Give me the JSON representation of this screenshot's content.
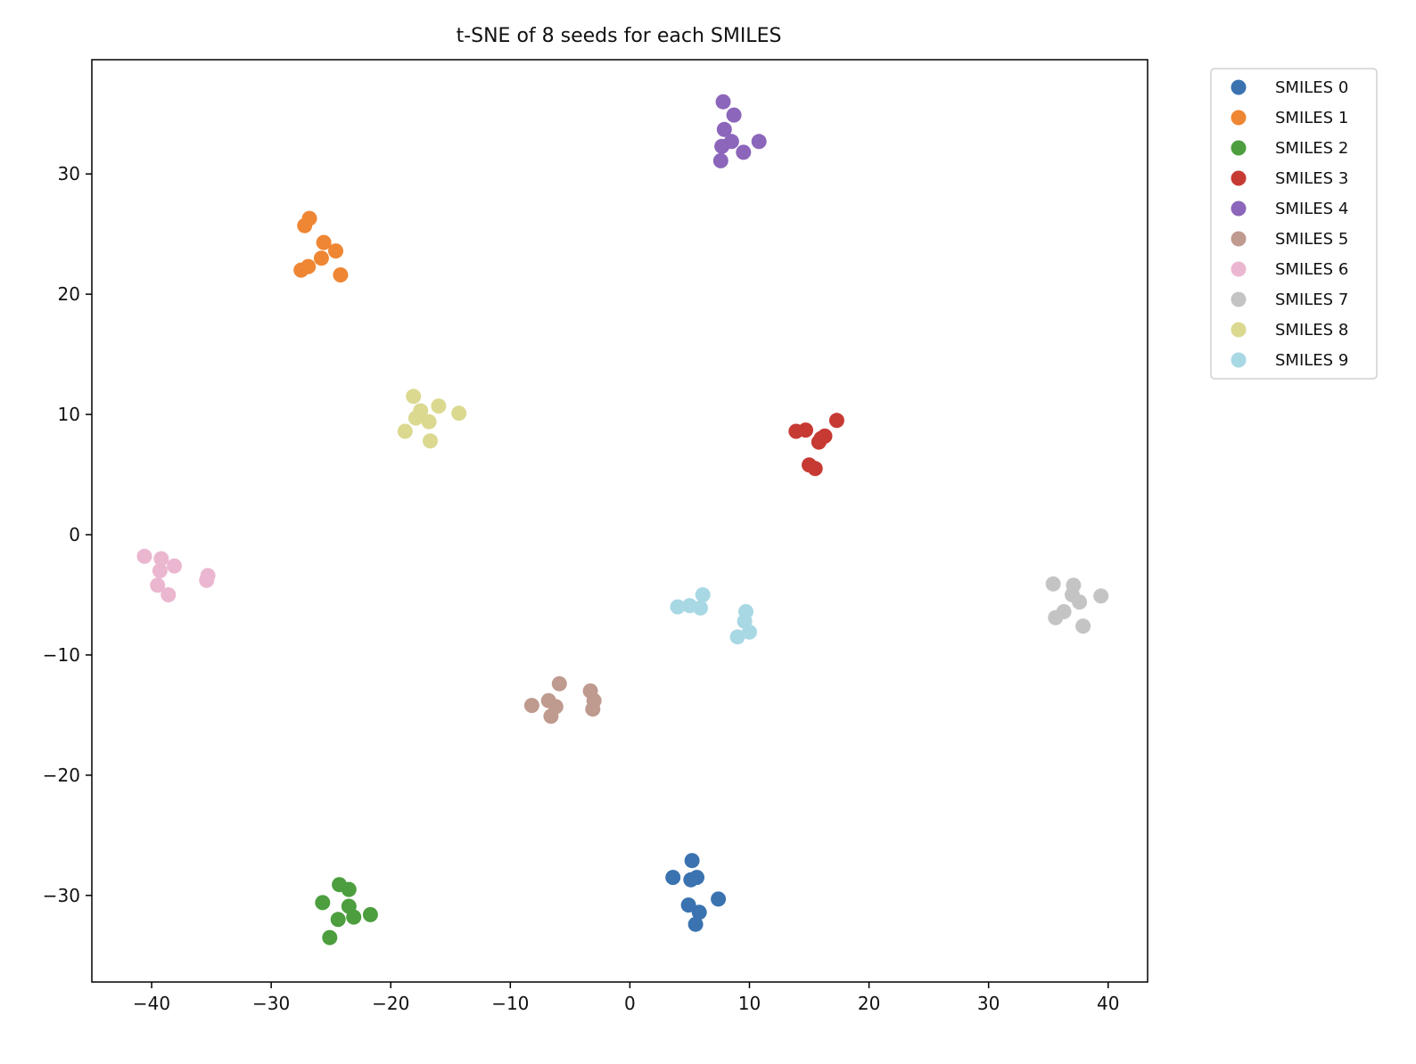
{
  "chart_data": {
    "type": "scatter",
    "title": "t-SNE of 8 seeds for each SMILES",
    "xlabel": "",
    "ylabel": "",
    "xlim": [
      -45,
      43.3
    ],
    "ylim": [
      -37.2,
      39.5
    ],
    "xticks": [
      -40,
      -30,
      -20,
      -10,
      0,
      10,
      20,
      30,
      40
    ],
    "yticks": [
      -30,
      -20,
      -10,
      0,
      10,
      20,
      30
    ],
    "grid": false,
    "legend_position": "outside-top-right",
    "series": [
      {
        "name": "SMILES 0",
        "color": "#3a73b0",
        "points": [
          [
            5.2,
            -27.1
          ],
          [
            3.6,
            -28.5
          ],
          [
            5.1,
            -28.7
          ],
          [
            5.6,
            -28.5
          ],
          [
            7.4,
            -30.3
          ],
          [
            4.9,
            -30.8
          ],
          [
            5.8,
            -31.4
          ],
          [
            5.5,
            -32.4
          ]
        ]
      },
      {
        "name": "SMILES 1",
        "color": "#ef8633",
        "points": [
          [
            -26.8,
            26.3
          ],
          [
            -27.2,
            25.7
          ],
          [
            -25.6,
            24.3
          ],
          [
            -24.6,
            23.6
          ],
          [
            -25.8,
            23.0
          ],
          [
            -26.9,
            22.3
          ],
          [
            -27.5,
            22.0
          ],
          [
            -24.2,
            21.6
          ]
        ]
      },
      {
        "name": "SMILES 2",
        "color": "#4c9e3e",
        "points": [
          [
            -24.3,
            -29.1
          ],
          [
            -23.5,
            -29.5
          ],
          [
            -25.7,
            -30.6
          ],
          [
            -23.5,
            -30.9
          ],
          [
            -21.7,
            -31.6
          ],
          [
            -23.1,
            -31.8
          ],
          [
            -24.4,
            -32.0
          ],
          [
            -25.1,
            -33.5
          ]
        ]
      },
      {
        "name": "SMILES 3",
        "color": "#c73a33",
        "points": [
          [
            17.3,
            9.5
          ],
          [
            13.9,
            8.6
          ],
          [
            14.7,
            8.7
          ],
          [
            16.3,
            8.2
          ],
          [
            15.8,
            7.7
          ],
          [
            15.0,
            5.8
          ],
          [
            15.5,
            5.5
          ],
          [
            16.0,
            8.0
          ]
        ]
      },
      {
        "name": "SMILES 4",
        "color": "#8c66ba",
        "points": [
          [
            7.8,
            36.0
          ],
          [
            8.7,
            34.9
          ],
          [
            7.9,
            33.7
          ],
          [
            8.5,
            32.7
          ],
          [
            7.7,
            32.3
          ],
          [
            10.8,
            32.7
          ],
          [
            9.5,
            31.8
          ],
          [
            7.6,
            31.1
          ]
        ]
      },
      {
        "name": "SMILES 5",
        "color": "#bf9a8f",
        "points": [
          [
            -5.9,
            -12.4
          ],
          [
            -3.3,
            -13.0
          ],
          [
            -3.0,
            -13.8
          ],
          [
            -6.8,
            -13.8
          ],
          [
            -8.2,
            -14.2
          ],
          [
            -6.2,
            -14.3
          ],
          [
            -3.1,
            -14.5
          ],
          [
            -6.6,
            -15.1
          ]
        ]
      },
      {
        "name": "SMILES 6",
        "color": "#ebb7d0",
        "points": [
          [
            -40.6,
            -1.8
          ],
          [
            -39.2,
            -2.0
          ],
          [
            -38.1,
            -2.6
          ],
          [
            -39.3,
            -3.0
          ],
          [
            -35.3,
            -3.4
          ],
          [
            -35.4,
            -3.8
          ],
          [
            -39.5,
            -4.2
          ],
          [
            -38.6,
            -5.0
          ]
        ]
      },
      {
        "name": "SMILES 7",
        "color": "#c4c4c4",
        "points": [
          [
            35.4,
            -4.1
          ],
          [
            37.1,
            -4.2
          ],
          [
            39.4,
            -5.1
          ],
          [
            37.0,
            -5.0
          ],
          [
            37.6,
            -5.6
          ],
          [
            36.3,
            -6.4
          ],
          [
            35.6,
            -6.9
          ],
          [
            37.9,
            -7.6
          ]
        ]
      },
      {
        "name": "SMILES 8",
        "color": "#dbd990",
        "points": [
          [
            -18.1,
            11.5
          ],
          [
            -16.0,
            10.7
          ],
          [
            -17.5,
            10.3
          ],
          [
            -14.3,
            10.1
          ],
          [
            -17.9,
            9.7
          ],
          [
            -16.8,
            9.4
          ],
          [
            -18.8,
            8.6
          ],
          [
            -16.7,
            7.8
          ]
        ]
      },
      {
        "name": "SMILES 9",
        "color": "#a8d8e4",
        "points": [
          [
            6.1,
            -5.0
          ],
          [
            4.0,
            -6.0
          ],
          [
            5.0,
            -5.9
          ],
          [
            5.9,
            -6.1
          ],
          [
            9.7,
            -6.4
          ],
          [
            9.6,
            -7.2
          ],
          [
            10.0,
            -8.1
          ],
          [
            9.0,
            -8.5
          ]
        ]
      }
    ]
  }
}
